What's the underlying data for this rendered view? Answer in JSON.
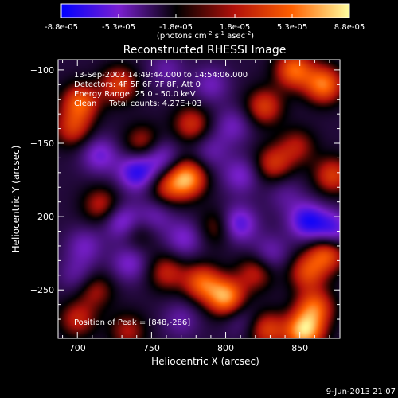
{
  "chart_data": {
    "type": "heatmap",
    "title": "Reconstructed RHESSI Image",
    "xlabel": "Heliocentric X (arcsec)",
    "ylabel": "Heliocentric Y (arcsec)",
    "xlim": [
      687,
      877
    ],
    "ylim": [
      -283,
      -93
    ],
    "x_ticks": [
      700,
      750,
      800,
      850
    ],
    "y_ticks": [
      -100,
      -150,
      -200,
      -250
    ],
    "colorbar": {
      "ticks": [
        "-8.8e-05",
        "-5.3e-05",
        "-1.8e-05",
        "1.8e-05",
        "5.3e-05",
        "8.8e-05"
      ],
      "range": [
        -8.8e-05,
        8.8e-05
      ],
      "unit_text": "(photons cm",
      "unit_exp1": "-2",
      "unit_mid": " s",
      "unit_exp2": "-1",
      "unit_mid2": " asec",
      "unit_exp3": "-2",
      "unit_close": ")",
      "colors": [
        "#0000ff",
        "#7a1fd0",
        "#000000",
        "#b0100a",
        "#ff6000",
        "#ffffa0"
      ]
    },
    "annotations": {
      "time": "13-Sep-2003 14:49:44.000 to 14:54:06.000",
      "detectors": "Detectors: 4F 5F 6F 7F 8F, Att 0",
      "energy": "Energy Range: 25.0 - 50.0 keV",
      "method": "Clean     Total counts: 4.27E+03",
      "peak": "Position of Peak = [848,-286]"
    },
    "peak": [
      848,
      -286
    ],
    "sources": [
      {
        "x": 846,
        "y": -100,
        "v": 6.5e-05
      },
      {
        "x": 866,
        "y": -110,
        "v": 7e-05
      },
      {
        "x": 826,
        "y": -125,
        "v": 5e-05
      },
      {
        "x": 702,
        "y": -122,
        "v": 6e-05
      },
      {
        "x": 728,
        "y": -110,
        "v": 5e-05
      },
      {
        "x": 697,
        "y": -140,
        "v": 4.5e-05
      },
      {
        "x": 744,
        "y": -150,
        "v": 4e-05
      },
      {
        "x": 777,
        "y": -137,
        "v": 4.5e-05
      },
      {
        "x": 774,
        "y": -174,
        "v": 8e-05
      },
      {
        "x": 760,
        "y": -180,
        "v": 4e-05
      },
      {
        "x": 832,
        "y": -164,
        "v": 4.5e-05
      },
      {
        "x": 848,
        "y": -152,
        "v": 3.5e-05
      },
      {
        "x": 872,
        "y": -172,
        "v": 5e-05
      },
      {
        "x": 716,
        "y": -192,
        "v": 4e-05
      },
      {
        "x": 740,
        "y": -210,
        "v": 3e-05
      },
      {
        "x": 868,
        "y": -225,
        "v": 6e-05
      },
      {
        "x": 855,
        "y": -238,
        "v": 5e-05
      },
      {
        "x": 795,
        "y": -207,
        "v": 3.5e-05
      },
      {
        "x": 760,
        "y": -238,
        "v": 4e-05
      },
      {
        "x": 800,
        "y": -255,
        "v": 8e-05
      },
      {
        "x": 784,
        "y": -245,
        "v": 6e-05
      },
      {
        "x": 712,
        "y": -250,
        "v": 3.5e-05
      },
      {
        "x": 700,
        "y": -270,
        "v": 4e-05
      },
      {
        "x": 734,
        "y": -278,
        "v": 3.5e-05
      },
      {
        "x": 860,
        "y": -262,
        "v": 6e-05
      },
      {
        "x": 853,
        "y": -278,
        "v": 8.8e-05
      },
      {
        "x": 828,
        "y": -277,
        "v": 5e-05
      },
      {
        "x": 820,
        "y": -238,
        "v": 4e-05
      },
      {
        "x": 740,
        "y": -170,
        "v": -6e-05
      },
      {
        "x": 715,
        "y": -158,
        "v": -4e-05
      },
      {
        "x": 756,
        "y": -160,
        "v": -4e-05
      },
      {
        "x": 731,
        "y": -204,
        "v": -5e-05
      },
      {
        "x": 752,
        "y": -200,
        "v": -3e-05
      },
      {
        "x": 808,
        "y": -205,
        "v": -5.5e-05
      },
      {
        "x": 855,
        "y": -203,
        "v": -6e-05
      },
      {
        "x": 872,
        "y": -209,
        "v": -5e-05
      },
      {
        "x": 805,
        "y": -138,
        "v": -3e-05
      },
      {
        "x": 810,
        "y": -172,
        "v": -3.5e-05
      },
      {
        "x": 790,
        "y": -155,
        "v": -2.5e-05
      },
      {
        "x": 772,
        "y": -215,
        "v": -3.5e-05
      },
      {
        "x": 705,
        "y": -220,
        "v": -3e-05
      },
      {
        "x": 735,
        "y": -232,
        "v": -3.5e-05
      },
      {
        "x": 700,
        "y": -240,
        "v": -2.5e-05
      },
      {
        "x": 830,
        "y": -225,
        "v": -3e-05
      },
      {
        "x": 770,
        "y": -270,
        "v": -2.5e-05
      },
      {
        "x": 760,
        "y": -100,
        "v": -2.5e-05
      },
      {
        "x": 790,
        "y": -110,
        "v": -3e-05
      },
      {
        "x": 840,
        "y": -185,
        "v": -2e-05
      },
      {
        "x": 810,
        "y": -270,
        "v": -2e-05
      }
    ]
  },
  "footer": {
    "date": "9-Jun-2013 21:07"
  }
}
